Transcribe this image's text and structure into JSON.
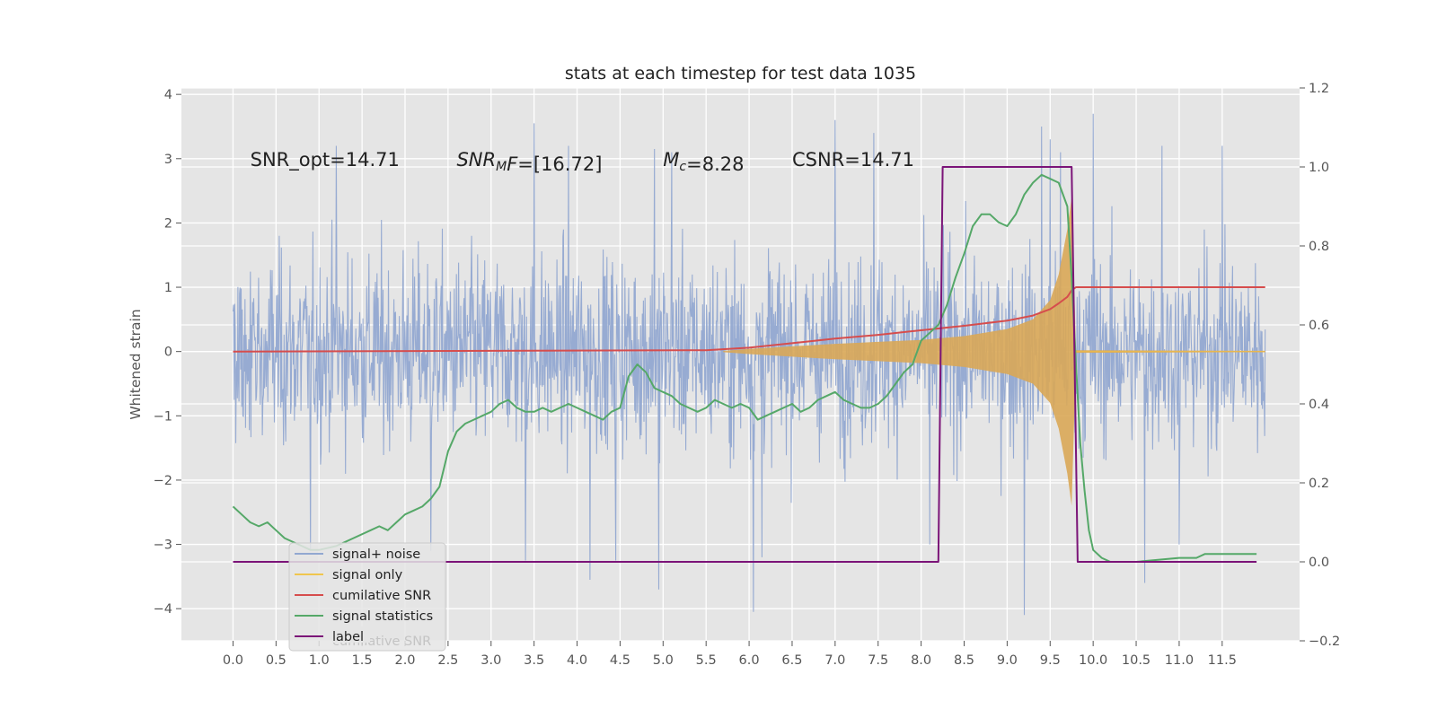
{
  "chart_data": {
    "type": "line",
    "title": "stats at each timestep for test data 1035",
    "ylabel": "Whitened strain",
    "xlabel": "",
    "xlim": [
      -0.6,
      12.4
    ],
    "ylim": [
      -4.5,
      4.1
    ],
    "y2lim": [
      -0.2,
      1.2
    ],
    "grid": true,
    "legend_position": "lower-left",
    "x_ticks": [
      "0.0",
      "0.5",
      "1.0",
      "1.5",
      "2.0",
      "2.5",
      "3.0",
      "3.5",
      "4.0",
      "4.5",
      "5.0",
      "5.5",
      "6.0",
      "6.5",
      "7.0",
      "7.5",
      "8.0",
      "8.5",
      "9.0",
      "9.5",
      "10.0",
      "10.5",
      "11.0",
      "11.5"
    ],
    "x_tick_values": [
      0.0,
      0.5,
      1.0,
      1.5,
      2.0,
      2.5,
      3.0,
      3.5,
      4.0,
      4.5,
      5.0,
      5.5,
      6.0,
      6.5,
      7.0,
      7.5,
      8.0,
      8.5,
      9.0,
      9.5,
      10.0,
      10.5,
      11.0,
      11.5
    ],
    "y_ticks": [
      {
        "value": 4,
        "label": "4"
      },
      {
        "value": 3,
        "label": "3"
      },
      {
        "value": 2,
        "label": "2"
      },
      {
        "value": 1,
        "label": "1"
      },
      {
        "value": 0,
        "label": "0"
      },
      {
        "value": -1,
        "label": "−1"
      },
      {
        "value": -2,
        "label": "−2"
      },
      {
        "value": -3,
        "label": "−3"
      },
      {
        "value": -4,
        "label": "−4"
      }
    ],
    "y2_ticks": [
      {
        "value": 1.2,
        "label": "1.2"
      },
      {
        "value": 1.0,
        "label": "1.0"
      },
      {
        "value": 0.8,
        "label": "0.8"
      },
      {
        "value": 0.6,
        "label": "0.6"
      },
      {
        "value": 0.4,
        "label": "0.4"
      },
      {
        "value": 0.2,
        "label": "0.2"
      },
      {
        "value": 0.0,
        "label": "0.0"
      },
      {
        "value": -0.2,
        "label": "−0.2"
      }
    ],
    "annotations": [
      {
        "x": 0.2,
        "y": 3.0,
        "parts": [
          {
            "t": "SNR_opt=14.71"
          }
        ]
      },
      {
        "x": 2.6,
        "y": 3.0,
        "parts": [
          {
            "t": "SNR",
            "italic": true
          },
          {
            "t": "M",
            "italic": true,
            "sub": true
          },
          {
            "t": "F",
            "italic": true
          },
          {
            "t": "=[16.72]"
          }
        ]
      },
      {
        "x": 5.0,
        "y": 3.0,
        "parts": [
          {
            "t": "M",
            "italic": true
          },
          {
            "t": "c",
            "italic": true,
            "sub": true
          },
          {
            "t": "=8.28"
          }
        ]
      },
      {
        "x": 6.5,
        "y": 3.0,
        "parts": [
          {
            "t": "CSNR=14.71"
          }
        ]
      }
    ],
    "series": [
      {
        "name": "signal+ noise",
        "color": "#92a8d1",
        "axis": "left",
        "kind": "noise",
        "t_start": 0.0,
        "t_end": 12.0,
        "typical_envelope": [
          [
            0.0,
            2.0
          ],
          [
            12.0,
            2.0
          ]
        ],
        "spikes_high": [
          [
            1.2,
            3.2
          ],
          [
            3.5,
            3.55
          ],
          [
            3.9,
            3.2
          ],
          [
            4.9,
            3.15
          ],
          [
            5.1,
            3.1
          ],
          [
            7.0,
            3.6
          ],
          [
            7.45,
            3.4
          ],
          [
            9.4,
            3.5
          ],
          [
            9.5,
            3.3
          ],
          [
            9.62,
            3.1
          ],
          [
            10.0,
            3.7
          ],
          [
            10.8,
            3.2
          ],
          [
            11.5,
            3.2
          ]
        ],
        "spikes_low": [
          [
            0.9,
            -3.1
          ],
          [
            2.3,
            -3.1
          ],
          [
            3.4,
            -3.25
          ],
          [
            4.15,
            -3.55
          ],
          [
            4.45,
            -3.25
          ],
          [
            4.95,
            -3.7
          ],
          [
            6.05,
            -4.05
          ],
          [
            6.15,
            -3.2
          ],
          [
            8.1,
            -3.0
          ],
          [
            9.2,
            -4.1
          ],
          [
            10.6,
            -3.6
          ],
          [
            11.0,
            -3.0
          ]
        ]
      },
      {
        "name": "signal only",
        "color": "#e8b74f",
        "axis": "left",
        "kind": "envelope",
        "x": [
          5.7,
          6.0,
          6.5,
          7.0,
          7.5,
          8.0,
          8.5,
          9.0,
          9.3,
          9.5,
          9.6,
          9.7,
          9.75,
          9.78,
          9.8,
          12.0
        ],
        "y": [
          0.01,
          0.04,
          0.08,
          0.12,
          0.15,
          0.18,
          0.24,
          0.35,
          0.5,
          0.8,
          1.2,
          1.9,
          2.4,
          1.0,
          0.02,
          0.01
        ]
      },
      {
        "name": "cumilative SNR",
        "color": "#d64d4d",
        "axis": "left",
        "x": [
          0,
          5.5,
          6.0,
          6.5,
          7.0,
          7.5,
          8.0,
          8.5,
          9.0,
          9.3,
          9.5,
          9.6,
          9.7,
          9.75,
          9.8,
          12.0
        ],
        "y": [
          0.0,
          0.02,
          0.06,
          0.13,
          0.2,
          0.26,
          0.33,
          0.4,
          0.48,
          0.56,
          0.66,
          0.75,
          0.85,
          0.95,
          1.0,
          1.0
        ]
      },
      {
        "name": "signal statistics",
        "color": "#55a868",
        "axis": "right",
        "x": [
          0.0,
          0.1,
          0.2,
          0.3,
          0.4,
          0.5,
          0.6,
          0.7,
          0.8,
          0.9,
          1.0,
          1.2,
          1.4,
          1.6,
          1.7,
          1.8,
          1.9,
          2.0,
          2.1,
          2.2,
          2.3,
          2.4,
          2.5,
          2.6,
          2.7,
          2.8,
          2.9,
          3.0,
          3.1,
          3.2,
          3.3,
          3.4,
          3.5,
          3.6,
          3.7,
          3.8,
          3.9,
          4.0,
          4.1,
          4.2,
          4.3,
          4.4,
          4.5,
          4.6,
          4.7,
          4.8,
          4.9,
          5.0,
          5.1,
          5.2,
          5.3,
          5.4,
          5.5,
          5.6,
          5.7,
          5.8,
          5.9,
          6.0,
          6.1,
          6.2,
          6.3,
          6.4,
          6.5,
          6.6,
          6.7,
          6.8,
          6.9,
          7.0,
          7.1,
          7.2,
          7.3,
          7.4,
          7.5,
          7.6,
          7.7,
          7.8,
          7.9,
          8.0,
          8.1,
          8.2,
          8.3,
          8.4,
          8.5,
          8.6,
          8.7,
          8.8,
          8.9,
          9.0,
          9.1,
          9.2,
          9.3,
          9.4,
          9.5,
          9.6,
          9.7,
          9.75,
          9.8,
          9.85,
          9.9,
          9.95,
          10.0,
          10.1,
          10.2,
          10.5,
          11.0,
          11.2,
          11.3,
          11.5,
          11.7,
          11.9
        ],
        "y": [
          0.14,
          0.12,
          0.1,
          0.09,
          0.1,
          0.08,
          0.06,
          0.05,
          0.04,
          0.03,
          0.03,
          0.04,
          0.06,
          0.08,
          0.09,
          0.08,
          0.1,
          0.12,
          0.13,
          0.14,
          0.16,
          0.19,
          0.28,
          0.33,
          0.35,
          0.36,
          0.37,
          0.38,
          0.4,
          0.41,
          0.39,
          0.38,
          0.38,
          0.39,
          0.38,
          0.39,
          0.4,
          0.39,
          0.38,
          0.37,
          0.36,
          0.38,
          0.39,
          0.47,
          0.5,
          0.48,
          0.44,
          0.43,
          0.42,
          0.4,
          0.39,
          0.38,
          0.39,
          0.41,
          0.4,
          0.39,
          0.4,
          0.39,
          0.36,
          0.37,
          0.38,
          0.39,
          0.4,
          0.38,
          0.39,
          0.41,
          0.42,
          0.43,
          0.41,
          0.4,
          0.39,
          0.39,
          0.4,
          0.42,
          0.45,
          0.48,
          0.5,
          0.56,
          0.58,
          0.6,
          0.65,
          0.72,
          0.78,
          0.85,
          0.88,
          0.88,
          0.86,
          0.85,
          0.88,
          0.93,
          0.96,
          0.98,
          0.97,
          0.96,
          0.9,
          0.72,
          0.5,
          0.3,
          0.18,
          0.08,
          0.03,
          0.01,
          0.0,
          0.0,
          0.01,
          0.01,
          0.02,
          0.02,
          0.02,
          0.02
        ]
      },
      {
        "name": "label",
        "color": "#7b1478",
        "axis": "right",
        "x": [
          0.0,
          8.2,
          8.25,
          9.75,
          9.82,
          11.9
        ],
        "y": [
          0.0,
          0.0,
          1.0,
          1.0,
          0.0,
          0.0
        ]
      }
    ],
    "legend": [
      {
        "label": "signal+ noise",
        "color": "#92a8d1"
      },
      {
        "label": "signal only",
        "color": "#f0c64e"
      },
      {
        "label": "cumilative SNR",
        "color": "#d64d4d"
      },
      {
        "label": "signal statistics",
        "color": "#55a868"
      },
      {
        "label": "label",
        "color": "#7b1478"
      }
    ],
    "legend_ghost_text": "cumilative SNR"
  }
}
